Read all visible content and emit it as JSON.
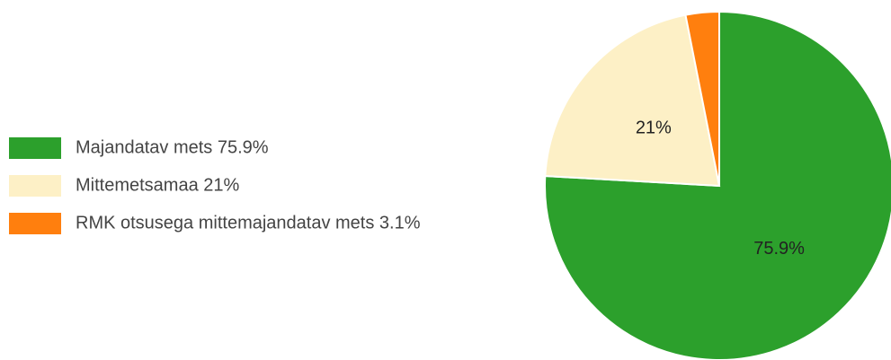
{
  "chart_data": {
    "type": "pie",
    "categories": [
      "Majandatav mets 75.9%",
      "Mittemetsamaa 21%",
      "RMK otsusega mittemajandatav mets 3.1%"
    ],
    "values": [
      75.9,
      21,
      3.1
    ],
    "value_labels": [
      "75.9%",
      "21%",
      null
    ],
    "colors": [
      "#2ca02c",
      "#fdf0c6",
      "#ff7f0e"
    ],
    "legend": "left"
  }
}
